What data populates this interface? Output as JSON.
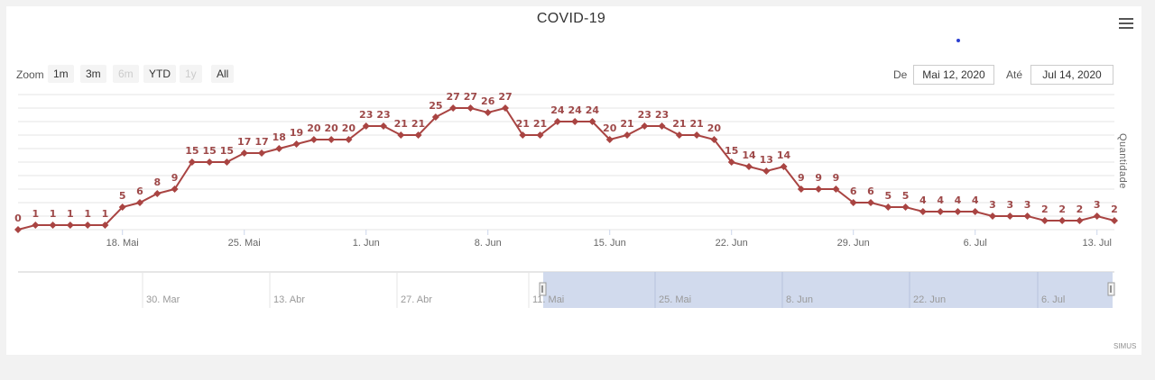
{
  "title": "COVID-19",
  "colors": {
    "series": "#a94442",
    "label": "#9e4949",
    "navigator_mask": "#ccd6eb",
    "grid": "#e6e6e6"
  },
  "menu_icon": "hamburger-icon",
  "range_selector": {
    "zoom_label": "Zoom",
    "buttons": [
      {
        "label": "1m",
        "enabled": true
      },
      {
        "label": "3m",
        "enabled": true
      },
      {
        "label": "6m",
        "enabled": false
      },
      {
        "label": "YTD",
        "enabled": true
      },
      {
        "label": "1y",
        "enabled": false
      },
      {
        "label": "All",
        "enabled": true
      }
    ],
    "from_label": "De",
    "from_value": "Mai 12, 2020",
    "to_label": "Até",
    "to_value": "Jul 14, 2020"
  },
  "chart_data": {
    "type": "line",
    "title": "COVID-19",
    "ylabel": "Quantidade",
    "x_start": "2020-05-12",
    "x_end": "2020-07-14",
    "ylim": [
      0,
      27
    ],
    "grid": true,
    "x_ticks": [
      "18. Mai",
      "25. Mai",
      "1. Jun",
      "8. Jun",
      "15. Jun",
      "22. Jun",
      "29. Jun",
      "6. Jul",
      "13. Jul"
    ],
    "series": [
      {
        "values": [
          0,
          1,
          1,
          1,
          1,
          1,
          5,
          6,
          8,
          9,
          15,
          15,
          15,
          17,
          17,
          18,
          19,
          20,
          20,
          20,
          23,
          23,
          21,
          21,
          25,
          27,
          27,
          26,
          27,
          21,
          21,
          24,
          24,
          24,
          20,
          21,
          23,
          23,
          21,
          21,
          20,
          15,
          14,
          13,
          14,
          9,
          9,
          9,
          6,
          6,
          5,
          5,
          4,
          4,
          4,
          4,
          3,
          3,
          3,
          2,
          2,
          2,
          3,
          2
        ]
      }
    ],
    "navigator": {
      "x_ticks": [
        "30. Mar",
        "13. Abr",
        "27. Abr",
        "11. Mai",
        "25. Mai",
        "8. Jun",
        "22. Jun",
        "6. Jul"
      ]
    }
  },
  "credits": "SIMUS"
}
